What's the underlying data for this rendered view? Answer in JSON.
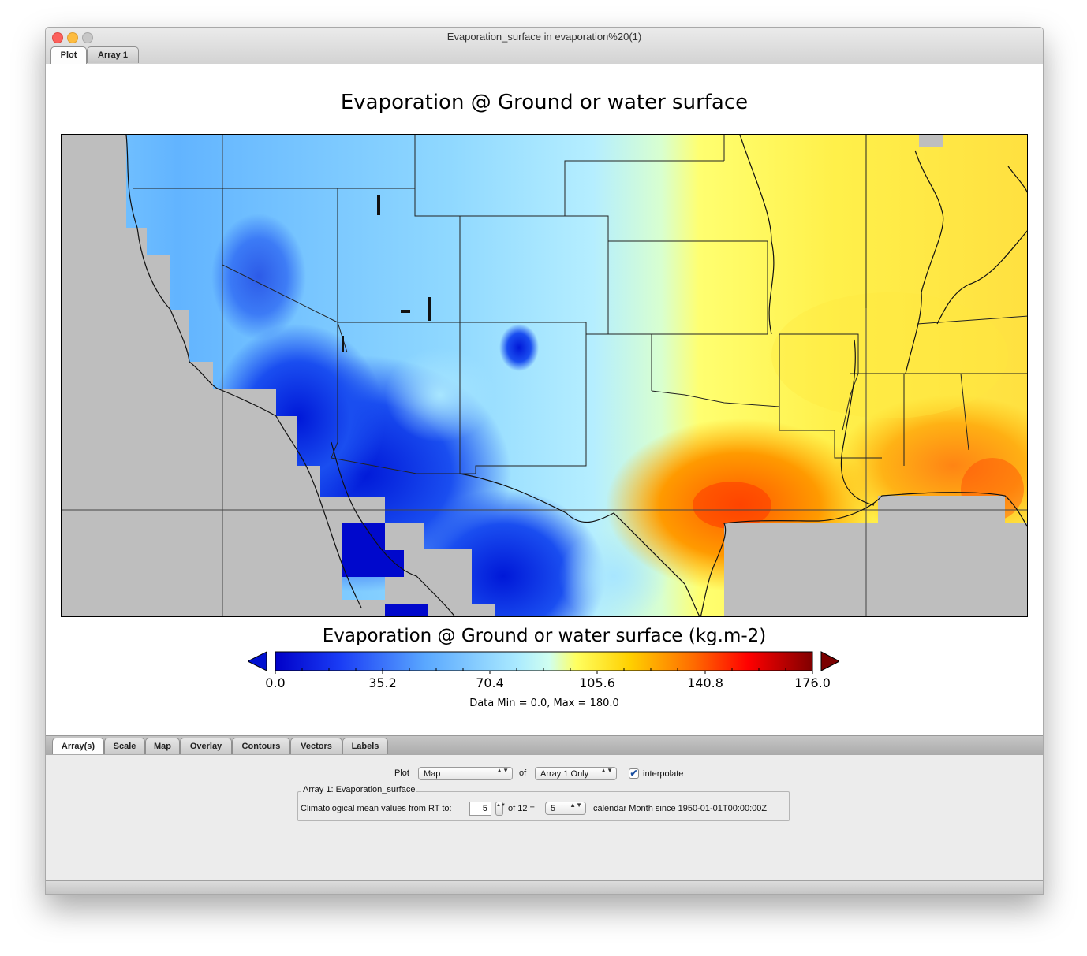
{
  "window": {
    "title": "Evaporation_surface in evaporation%20(1)",
    "top_tabs": [
      "Plot",
      "Array 1"
    ]
  },
  "plot": {
    "title": "Evaporation @ Ground or water surface",
    "colorbar_title": "Evaporation @ Ground or water surface (kg.m-2)",
    "colorbar_labels": [
      "0.0",
      "35.2",
      "70.4",
      "105.6",
      "140.8",
      "176.0"
    ],
    "data_minmax": "Data Min = 0.0, Max = 180.0",
    "colors": {
      "land_mask": "#bebebe",
      "low": "#0008cc",
      "mid": "#bfefff",
      "high": "#ffff3c",
      "peak": "#ff1e00",
      "over": "#7a0000",
      "under": "#0000b0"
    }
  },
  "bottom_tabs": [
    "Array(s)",
    "Scale",
    "Map",
    "Overlay",
    "Contours",
    "Vectors",
    "Labels"
  ],
  "controls": {
    "plot_label": "Plot",
    "plot_type": "Map",
    "of_label": "of",
    "array_choice": "Array 1 Only",
    "interpolate_label": "interpolate",
    "interpolate_checked": "✔",
    "group_title": "Array 1: Evaporation_surface",
    "clim_label": "Climatological mean values from RT to:",
    "rt_value": "5",
    "of_total": "of 12 =",
    "month_value": "5",
    "since_label": "calendar Month since 1950-01-01T00:00:00Z",
    "spinner_glyph": "▲▼"
  }
}
